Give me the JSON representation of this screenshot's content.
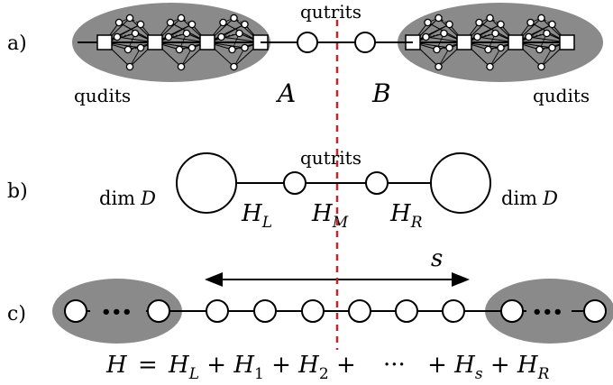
{
  "panel_labels": {
    "a": "a)",
    "b": "b)",
    "c": "c)"
  },
  "panel_a": {
    "top_label": "qutrits",
    "left_blob_label": "qudits",
    "right_blob_label": "qudits",
    "subsystem_left": "A",
    "subsystem_right": "B"
  },
  "panel_b": {
    "top_label": "qutrits",
    "left_dim_prefix": "dim",
    "left_dim_var": "D",
    "right_dim_prefix": "dim",
    "right_dim_var": "D",
    "h_left": {
      "base": "H",
      "sub": "L"
    },
    "h_mid": {
      "base": "H",
      "sub": "M"
    },
    "h_right": {
      "base": "H",
      "sub": "R"
    }
  },
  "panel_c": {
    "span_label": "s",
    "ellipsis_dots": "•••",
    "equation": {
      "lhs": "H",
      "eq": "=",
      "t1_base": "H",
      "t1_sub": "L",
      "plus1": "+",
      "t2_base": "H",
      "t2_sub": "1",
      "plus2": "+",
      "t3_base": "H",
      "t3_sub": "2",
      "plus3": "+",
      "dots": "···",
      "plus4": "+",
      "t4_base": "H",
      "t4_sub": "s",
      "plus5": "+",
      "t5_base": "H",
      "t5_sub": "R"
    }
  },
  "colors": {
    "blob": "#8a8a8a",
    "cut": "#c0272d",
    "ink": "#000000",
    "node_fill": "#ffffff"
  }
}
